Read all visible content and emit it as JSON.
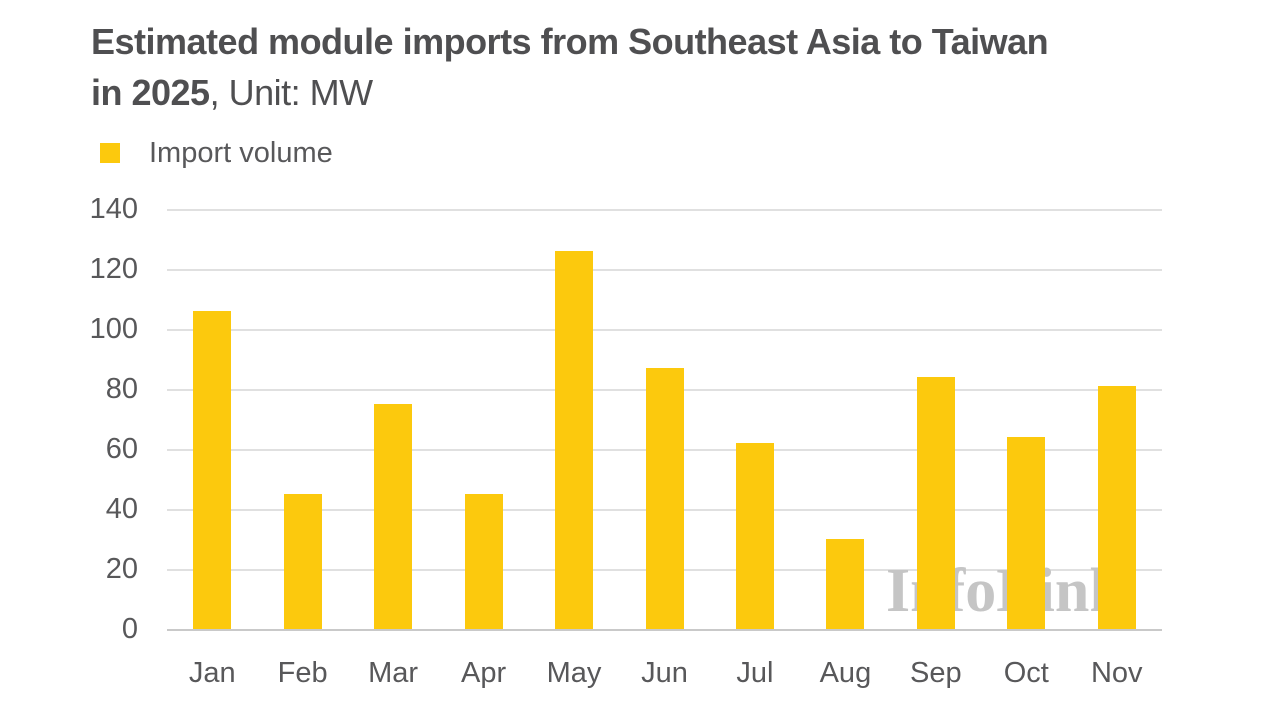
{
  "title": {
    "line1_bold": "Estimated module imports from Southeast Asia to Taiwan",
    "line2_bold": "in 2025",
    "line2_regular": ", Unit: MW"
  },
  "legend": {
    "label": "Import volume"
  },
  "watermark": "InfoLink",
  "colors": {
    "bar": "#fcc90d",
    "grid": "#e0e0e0",
    "axis_line": "#c9c9c9",
    "title_text": "#4f4f51",
    "label_text": "#58585a",
    "watermark_text": "#c5c5c5"
  },
  "chart_data": {
    "type": "bar",
    "title": "Estimated module imports from Southeast Asia to Taiwan in 2025",
    "unit": "MW",
    "series_name": "Import volume",
    "categories": [
      "Jan",
      "Feb",
      "Mar",
      "Apr",
      "May",
      "Jun",
      "Jul",
      "Aug",
      "Sep",
      "Oct",
      "Nov"
    ],
    "values": [
      106,
      45,
      75,
      45,
      126,
      87,
      62,
      30,
      84,
      64,
      81
    ],
    "xlabel": "",
    "ylabel": "",
    "ylim": [
      0,
      140
    ],
    "yticks": [
      0,
      20,
      40,
      60,
      80,
      100,
      120,
      140
    ],
    "grid": "horizontal",
    "legend_position": "top-left",
    "bar_color": "#fcc90d"
  }
}
